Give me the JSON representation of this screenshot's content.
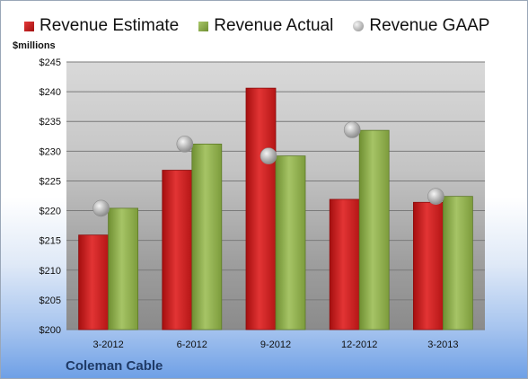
{
  "chart_data": {
    "type": "bar",
    "ylabel": "$millions",
    "ylim": [
      200,
      245
    ],
    "yticks": [
      "$200",
      "$205",
      "$210",
      "$215",
      "$220",
      "$225",
      "$230",
      "$235",
      "$240",
      "$245"
    ],
    "categories": [
      "3-2012",
      "6-2012",
      "9-2012",
      "12-2012",
      "3-2013"
    ],
    "series": [
      {
        "name": "Revenue Estimate",
        "kind": "bar",
        "color": "#c81e1e",
        "values": [
          215.9,
          226.8,
          240.6,
          221.9,
          221.4
        ]
      },
      {
        "name": "Revenue Actual",
        "kind": "bar",
        "color": "#8fae4e",
        "values": [
          220.4,
          231.2,
          229.2,
          233.5,
          222.4
        ]
      },
      {
        "name": "Revenue GAAP",
        "kind": "marker",
        "color": "#bdbdbd",
        "values": [
          220.4,
          231.2,
          229.2,
          233.6,
          222.4
        ]
      }
    ],
    "grid": true,
    "legend": "top"
  },
  "caption": "Coleman Cable"
}
